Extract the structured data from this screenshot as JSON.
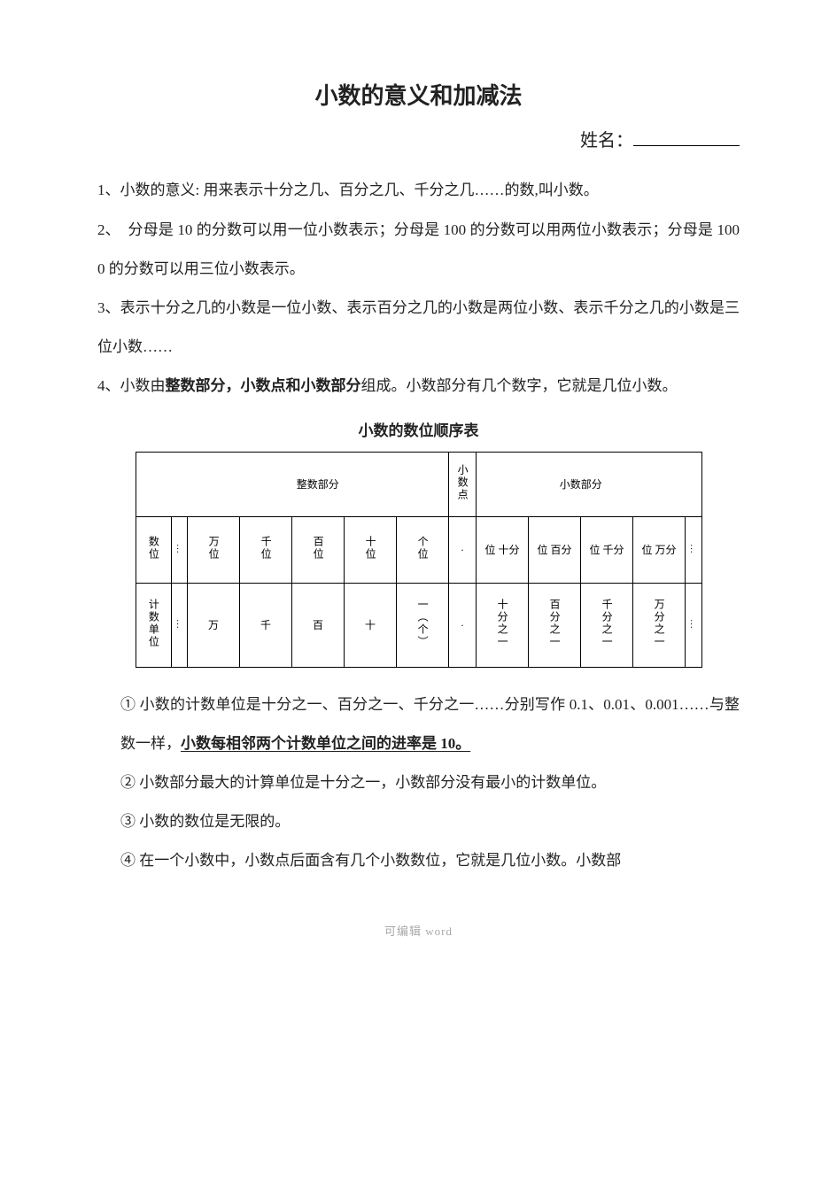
{
  "title": "小数的意义和加减法",
  "name_label": "姓名：",
  "paragraphs": {
    "p1": "1、小数的意义: 用来表示十分之几、百分之几、千分之几……的数,叫小数。",
    "p2": "2、　分母是 10 的分数可以用一位小数表示；分母是 100 的分数可以用两位小数表示；分母是 1000 的分数可以用三位小数表示。",
    "p3": "3、表示十分之几的小数是一位小数、表示百分之几的小数是两位小数、表示千分之几的小数是三位小数……",
    "p4_a": "4、小数由",
    "p4_bold": "整数部分，小数点和小数部分",
    "p4_b": "组成。小数部分有几个数字，它就是几位小数。"
  },
  "table": {
    "caption": "小数的数位顺序表",
    "ellipsis": "…",
    "header_left": "整数部分",
    "header_mid": "小数点",
    "header_right": "小数部分",
    "row2_label": "数位",
    "row2_int": [
      "万位",
      "千位",
      "百位",
      "十位",
      "个位"
    ],
    "row2_dot": "·",
    "row2_dec": [
      "位 十分",
      "位 百分",
      "位 千分",
      "位 万分"
    ],
    "row3_label": "计数单位",
    "row3_int": [
      "万",
      "千",
      "百",
      "十",
      "一（个）"
    ],
    "row3_dot": "·",
    "row3_dec": [
      "十分之一",
      "百分之一",
      "千分之一",
      "万分之一"
    ]
  },
  "notes": {
    "n1_a": "①  小数的计数单位是十分之一、百分之一、千分之一……分别写作 0.1、0.01、0.001……与整数一样，",
    "n1_u": "小数每相邻两个计数单位之间的进率是 10。",
    "n2": "②  小数部分最大的计算单位是十分之一，小数部分没有最小的计数单位。",
    "n3": "③  小数的数位是无限的。",
    "n4": "④  在一个小数中，小数点后面含有几个小数数位，它就是几位小数。小数部"
  },
  "footer": "可编辑 word"
}
